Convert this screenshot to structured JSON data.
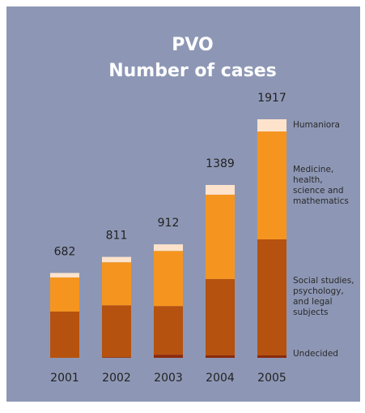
{
  "chart_data": {
    "type": "stacked-bar",
    "title": [
      "PVO",
      "Number of cases"
    ],
    "categories": [
      "2001",
      "2002",
      "2003",
      "2004",
      "2005"
    ],
    "series": [
      {
        "name": "Undecided",
        "color": "#8b2a0a",
        "values": [
          0,
          5,
          25,
          20,
          20
        ]
      },
      {
        "name": "Social studies, psychology, and legal subjects",
        "color": "#b5520f",
        "values": [
          372,
          417,
          391,
          613,
          932
        ]
      },
      {
        "name": "Medicine, health, science and mathematics",
        "color": "#f5951f",
        "values": [
          274,
          346,
          443,
          678,
          867
        ]
      },
      {
        "name": "Humaniora",
        "color": "#fde3cc",
        "values": [
          36,
          43,
          53,
          78,
          98
        ]
      }
    ],
    "totals": [
      682,
      811,
      912,
      1389,
      1917
    ]
  }
}
